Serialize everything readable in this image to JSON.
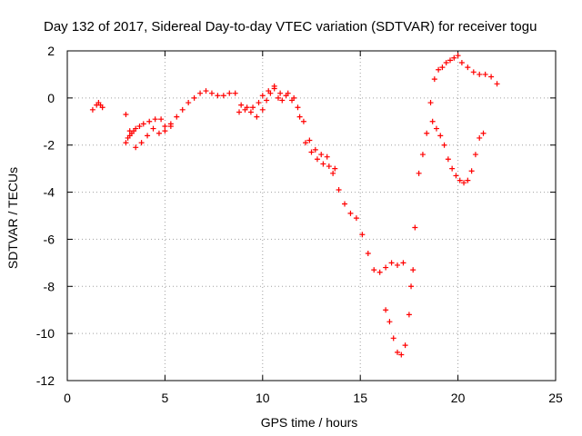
{
  "chart_data": {
    "type": "scatter",
    "title": "Day 132 of 2017, Sidereal Day-to-day VTEC variation (SDTVAR) for receiver togu",
    "xlabel": "GPS time / hours",
    "ylabel": "SDTVAR / TECUs",
    "xlim": [
      0,
      25
    ],
    "ylim": [
      -12,
      2
    ],
    "xticks": [
      0,
      5,
      10,
      15,
      20,
      25
    ],
    "yticks": [
      -12,
      -10,
      -8,
      -6,
      -4,
      -2,
      0,
      2
    ],
    "grid": true,
    "marker": "+",
    "color": "#ff0000",
    "series": [
      {
        "x": [
          1.3,
          1.5,
          1.6,
          1.7,
          1.8,
          3.0,
          3.1,
          3.2,
          3.3,
          3.4,
          3.5,
          3.7,
          3.9,
          4.2,
          4.5,
          4.8,
          5.0,
          5.3,
          5.6,
          5.9,
          6.2,
          6.5,
          6.8,
          7.1,
          7.4,
          7.7,
          8.0,
          8.3,
          8.6,
          8.9,
          9.2,
          9.5,
          9.8,
          10.0,
          10.3,
          10.6,
          10.9,
          11.2,
          11.5,
          11.8,
          12.1,
          12.4,
          12.7,
          13.0,
          13.3,
          13.6,
          13.9,
          14.2,
          14.5,
          14.8,
          15.1,
          15.4,
          15.7,
          16.0,
          16.3,
          16.6,
          16.9,
          17.2,
          3.0,
          3.2,
          3.5,
          3.8,
          4.1,
          4.4,
          4.7,
          5.0,
          5.3,
          8.8,
          9.1,
          9.4,
          9.7,
          10.0,
          10.2,
          10.4,
          10.6,
          10.8,
          11.0,
          11.3,
          11.6,
          11.9,
          12.2,
          12.5,
          12.8,
          13.1,
          13.4,
          13.7,
          16.3,
          16.5,
          16.7,
          16.9,
          17.1,
          17.3,
          17.5,
          17.6,
          17.7,
          17.8,
          18.0,
          18.2,
          18.4,
          18.6,
          18.8,
          19.0,
          19.2,
          19.4,
          19.6,
          19.8,
          20.0,
          20.2,
          20.5,
          20.8,
          21.1,
          21.4,
          21.7,
          22.0,
          18.7,
          18.9,
          19.1,
          19.3,
          19.5,
          19.7,
          19.9,
          20.1,
          20.3,
          20.5,
          20.7,
          20.9,
          21.1,
          21.3
        ],
        "y": [
          -0.5,
          -0.3,
          -0.2,
          -0.3,
          -0.4,
          -1.9,
          -1.7,
          -1.6,
          -1.5,
          -1.4,
          -1.3,
          -1.2,
          -1.1,
          -1.0,
          -0.9,
          -0.9,
          -1.2,
          -1.1,
          -0.8,
          -0.5,
          -0.2,
          0.0,
          0.2,
          0.3,
          0.2,
          0.1,
          0.1,
          0.2,
          0.2,
          -0.3,
          -0.4,
          -0.4,
          -0.2,
          0.1,
          0.3,
          0.4,
          0.2,
          0.1,
          -0.1,
          -0.4,
          -1.0,
          -1.8,
          -2.2,
          -2.4,
          -2.5,
          -3.2,
          -3.9,
          -4.5,
          -4.9,
          -5.1,
          -5.8,
          -6.6,
          -7.3,
          -7.4,
          -7.2,
          -7.0,
          -7.1,
          -7.0,
          -0.7,
          -1.4,
          -2.1,
          -1.9,
          -1.6,
          -1.3,
          -1.5,
          -1.4,
          -1.2,
          -0.6,
          -0.5,
          -0.6,
          -0.8,
          -0.5,
          -0.1,
          0.2,
          0.5,
          0.0,
          -0.1,
          0.2,
          0.0,
          -0.8,
          -1.9,
          -2.3,
          -2.6,
          -2.8,
          -2.9,
          -3.0,
          -9.0,
          -9.5,
          -10.2,
          -10.8,
          -10.9,
          -10.5,
          -9.2,
          -8.0,
          -7.3,
          -5.5,
          -3.2,
          -2.4,
          -1.5,
          -0.2,
          0.8,
          1.2,
          1.3,
          1.5,
          1.6,
          1.7,
          1.8,
          1.5,
          1.3,
          1.1,
          1.0,
          1.0,
          0.9,
          0.6,
          -1.0,
          -1.3,
          -1.6,
          -2.0,
          -2.6,
          -3.0,
          -3.3,
          -3.5,
          -3.6,
          -3.5,
          -3.1,
          -2.4,
          -1.7,
          -1.5
        ]
      }
    ]
  }
}
